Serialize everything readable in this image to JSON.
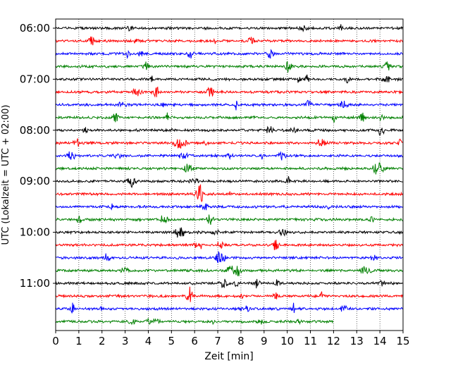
{
  "chart_data": {
    "type": "line",
    "title": "",
    "xlabel": "Zeit  [min]",
    "ylabel": "UTC (Lokalzeit = UTC + 02:00)",
    "xlim": [
      0,
      15
    ],
    "x_ticks": [
      "0",
      "1",
      "2",
      "3",
      "4",
      "5",
      "6",
      "7",
      "8",
      "9",
      "10",
      "11",
      "12",
      "13",
      "14",
      "15"
    ],
    "y_ticks": [
      "06:00",
      "07:00",
      "08:00",
      "09:00",
      "10:00",
      "11:00"
    ],
    "grid": "vertical dotted",
    "row_interval_min": 15,
    "start_time": "06:00",
    "row_colors": [
      "#000000",
      "#ff0000",
      "#0000ff",
      "#008000"
    ],
    "series": [
      {
        "start": "06:00",
        "color": "#000000",
        "duration_min": 15
      },
      {
        "start": "06:15",
        "color": "#ff0000",
        "duration_min": 15
      },
      {
        "start": "06:30",
        "color": "#0000ff",
        "duration_min": 15
      },
      {
        "start": "06:45",
        "color": "#008000",
        "duration_min": 15
      },
      {
        "start": "07:00",
        "color": "#000000",
        "duration_min": 15
      },
      {
        "start": "07:15",
        "color": "#ff0000",
        "duration_min": 15
      },
      {
        "start": "07:30",
        "color": "#0000ff",
        "duration_min": 15
      },
      {
        "start": "07:45",
        "color": "#008000",
        "duration_min": 15
      },
      {
        "start": "08:00",
        "color": "#000000",
        "duration_min": 15
      },
      {
        "start": "08:15",
        "color": "#ff0000",
        "duration_min": 15
      },
      {
        "start": "08:30",
        "color": "#0000ff",
        "duration_min": 15
      },
      {
        "start": "08:45",
        "color": "#008000",
        "duration_min": 15
      },
      {
        "start": "09:00",
        "color": "#000000",
        "duration_min": 15
      },
      {
        "start": "09:15",
        "color": "#ff0000",
        "duration_min": 15
      },
      {
        "start": "09:30",
        "color": "#0000ff",
        "duration_min": 15
      },
      {
        "start": "09:45",
        "color": "#008000",
        "duration_min": 15
      },
      {
        "start": "10:00",
        "color": "#000000",
        "duration_min": 15
      },
      {
        "start": "10:15",
        "color": "#ff0000",
        "duration_min": 15
      },
      {
        "start": "10:30",
        "color": "#0000ff",
        "duration_min": 15
      },
      {
        "start": "10:45",
        "color": "#008000",
        "duration_min": 15
      },
      {
        "start": "11:00",
        "color": "#000000",
        "duration_min": 15
      },
      {
        "start": "11:15",
        "color": "#ff0000",
        "duration_min": 15
      },
      {
        "start": "11:30",
        "color": "#0000ff",
        "duration_min": 15
      },
      {
        "start": "11:45",
        "color": "#008000",
        "duration_min": 12
      }
    ]
  }
}
